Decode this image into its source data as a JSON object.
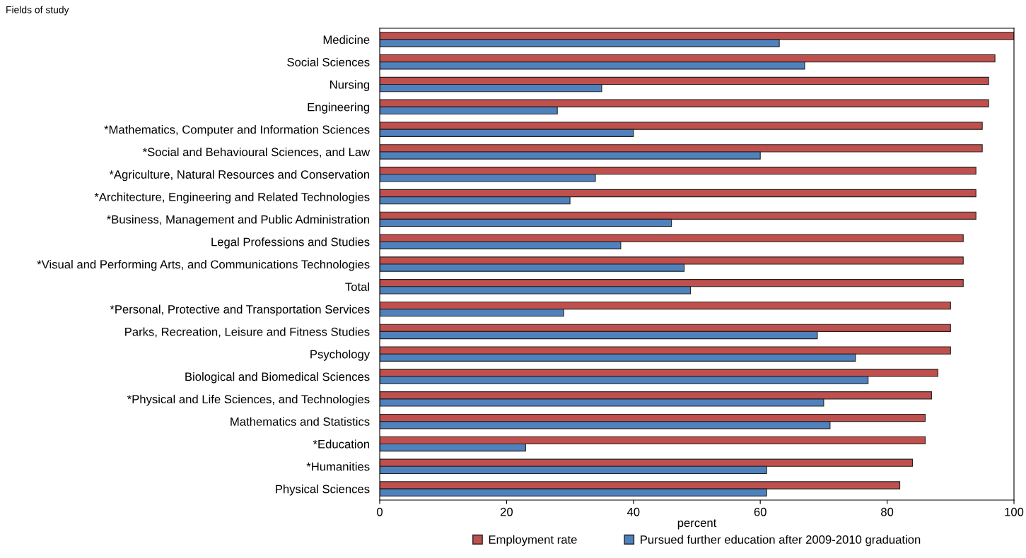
{
  "chart_data": {
    "type": "bar",
    "orientation": "horizontal",
    "ylabel": "Fields of study",
    "xlabel": "percent",
    "categories": [
      "Medicine",
      "Social Sciences",
      "Nursing",
      "Engineering",
      "*Mathematics, Computer and Information Sciences",
      "*Social and Behavioural Sciences, and Law",
      "*Agriculture, Natural Resources and Conservation",
      "*Architecture, Engineering and Related Technologies",
      "*Business, Management and Public Administration",
      "Legal Professions and Studies",
      "*Visual and Performing Arts, and Communications Technologies",
      "Total",
      "*Personal, Protective and Transportation Services",
      "Parks, Recreation, Leisure and Fitness Studies",
      "Psychology",
      "Biological and Biomedical Sciences",
      "*Physical and Life Sciences, and Technologies",
      "Mathematics and Statistics",
      "*Education",
      "*Humanities",
      "Physical Sciences"
    ],
    "series": [
      {
        "name": "Employment rate",
        "color": "#c0504d",
        "values": [
          100,
          97,
          96,
          96,
          95,
          95,
          94,
          94,
          94,
          92,
          92,
          92,
          90,
          90,
          90,
          88,
          87,
          86,
          86,
          84,
          82
        ]
      },
      {
        "name": "Pursued further education after 2009-2010 graduation",
        "color": "#4f81bd",
        "values": [
          63,
          67,
          35,
          28,
          40,
          60,
          34,
          30,
          46,
          38,
          48,
          49,
          29,
          69,
          75,
          77,
          70,
          71,
          23,
          61,
          61
        ]
      }
    ],
    "xlim": [
      0,
      100
    ],
    "xticks": [
      0,
      20,
      40,
      60,
      80,
      100
    ],
    "grid": false,
    "legend": "bottom"
  }
}
